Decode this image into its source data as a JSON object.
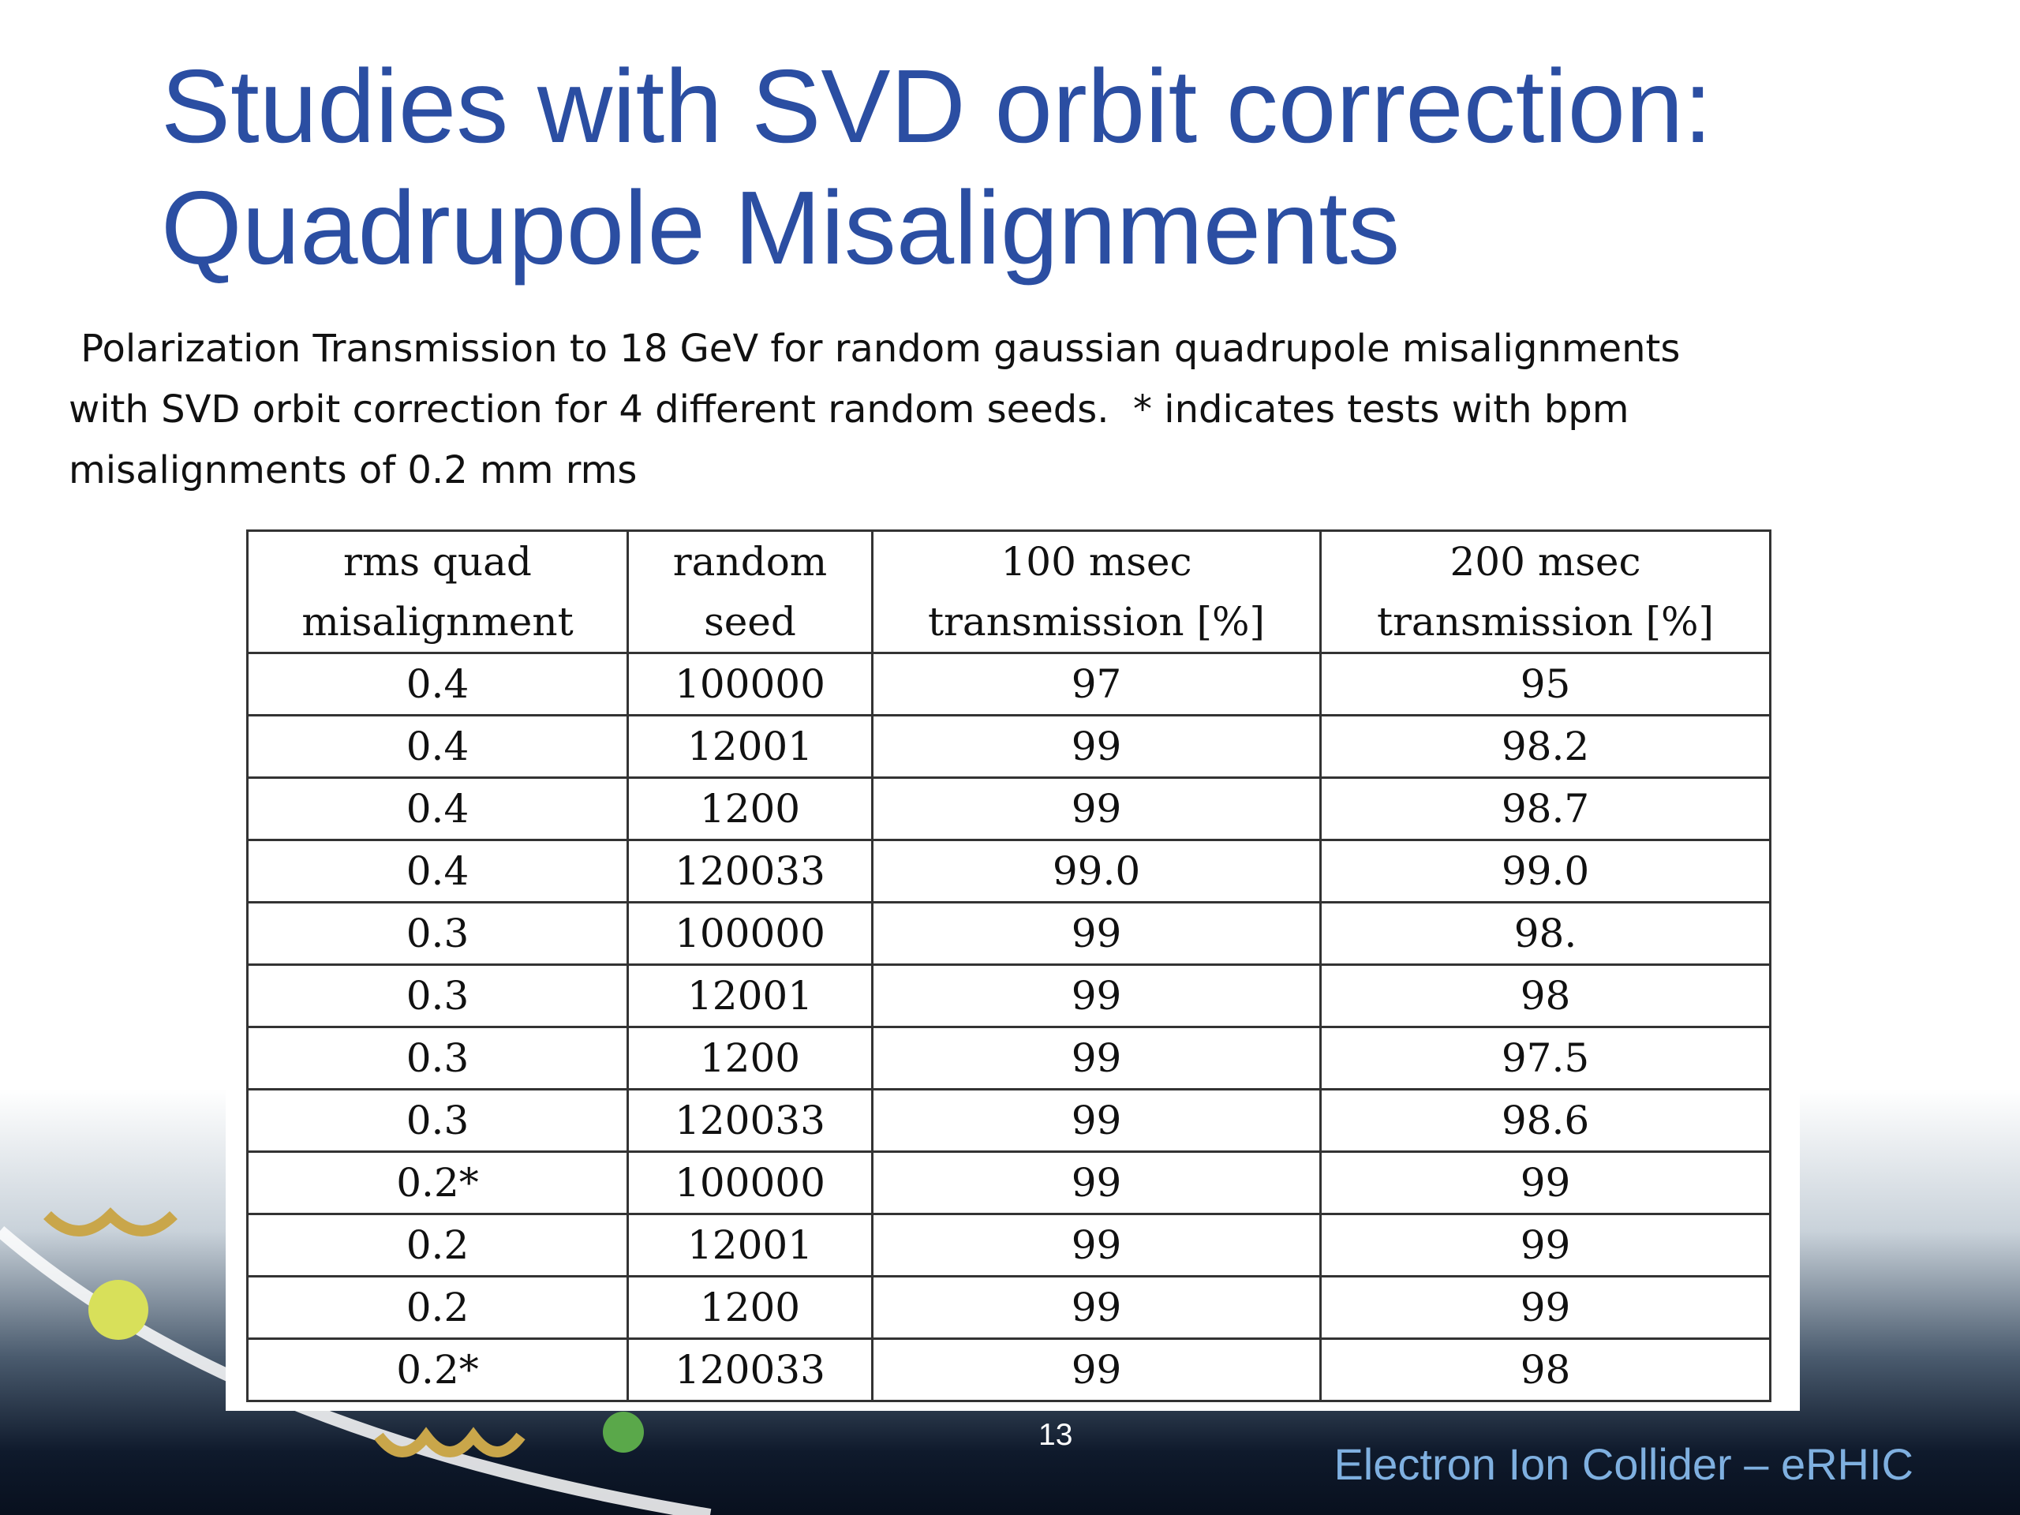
{
  "header": {
    "title": [
      "Studies with SVD orbit correction:",
      "Quadrupole Misalignments"
    ],
    "description": [
      " Polarization Transmission to 18 GeV for random gaussian quadrupole misalignments",
      "with SVD orbit correction for 4 different random seeds.  * indicates tests with bpm",
      "misalignments of 0.2 mm rms"
    ]
  },
  "table": {
    "columns": [
      [
        "rms quad",
        "misalignment"
      ],
      [
        "random",
        "seed"
      ],
      [
        "100 msec",
        "transmission [%]"
      ],
      [
        "200 msec",
        "transmission [%]"
      ]
    ],
    "rows": [
      [
        "0.4",
        "100000",
        "97",
        "95"
      ],
      [
        "0.4",
        "12001",
        "99",
        "98.2"
      ],
      [
        "0.4",
        "1200",
        "99",
        "98.7"
      ],
      [
        "0.4",
        "120033",
        "99.0",
        "99.0"
      ],
      [
        "0.3",
        "100000",
        "99",
        "98."
      ],
      [
        "0.3",
        "12001",
        "99",
        "98"
      ],
      [
        "0.3",
        "1200",
        "99",
        "97.5"
      ],
      [
        "0.3",
        "120033",
        "99",
        "98.6"
      ],
      [
        "0.2*",
        "100000",
        "99",
        "99"
      ],
      [
        "0.2",
        "12001",
        "99",
        "99"
      ],
      [
        "0.2",
        "1200",
        "99",
        "99"
      ],
      [
        "0.2*",
        "120033",
        "99",
        "98"
      ]
    ]
  },
  "footer": {
    "page_number": "13",
    "text": "Electron Ion Collider – eRHIC"
  }
}
